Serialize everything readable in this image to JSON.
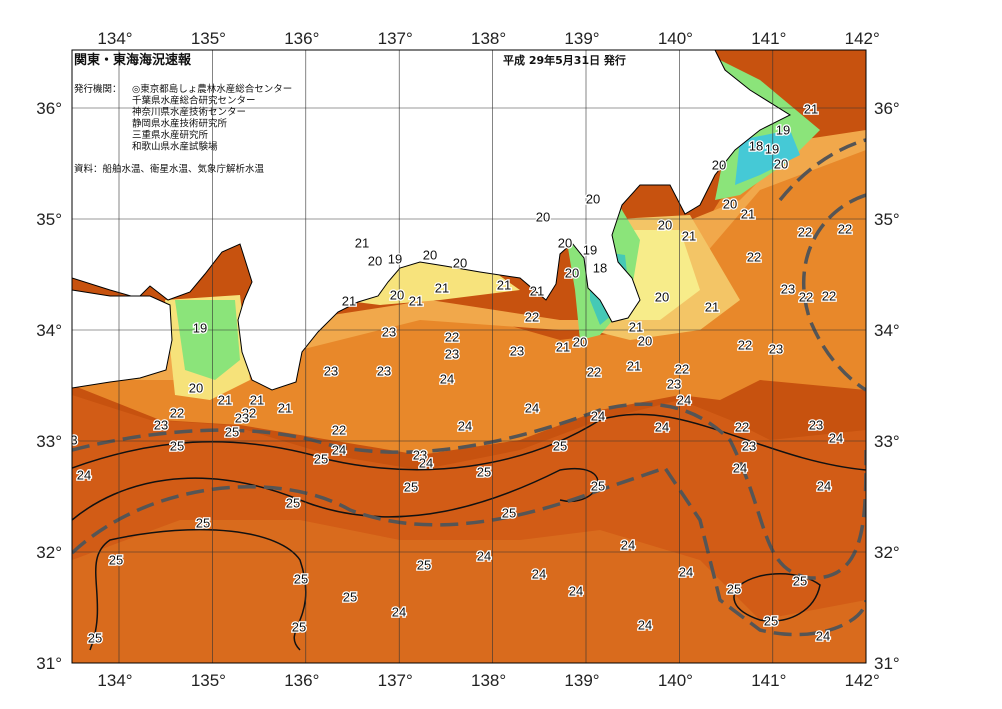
{
  "header": {
    "title": "関東・東海海況速報",
    "issued": "平成 29年5月31日 発行",
    "agencies_label": "発行機関：",
    "agencies": [
      "◎東京都島しょ農林水産総合センター",
      "千葉県水産総合研究センター",
      "神奈川県水産技術センター",
      "静岡県水産技術研究所",
      "三重県水産研究所",
      "和歌山県水産試験場"
    ],
    "source": "資料：船舶水温、衛星水温、気象庁解析水温"
  },
  "axes": {
    "longitudes": [
      "134°",
      "135°",
      "136°",
      "137°",
      "138°",
      "139°",
      "140°",
      "141°",
      "142°"
    ],
    "latitudes": [
      "36°",
      "35°",
      "34°",
      "33°",
      "32°",
      "31°"
    ]
  },
  "contour_labels": [
    21,
    19,
    18,
    19,
    20,
    20,
    20,
    21,
    22,
    22,
    21,
    22,
    23,
    22,
    22,
    21,
    22,
    23,
    20,
    20,
    20,
    19,
    18,
    20,
    20,
    20,
    21,
    20,
    21,
    20,
    21,
    22,
    22,
    23,
    24,
    22,
    21,
    21,
    21,
    21,
    20,
    21,
    20,
    19,
    21,
    20,
    20,
    19,
    20,
    21,
    21,
    21,
    22,
    23,
    22,
    23,
    25,
    25,
    23,
    22,
    23,
    23,
    23,
    23,
    24,
    24,
    24,
    24,
    22,
    24,
    25,
    23,
    24,
    25,
    25,
    25,
    24,
    22,
    23,
    23,
    24,
    24,
    24,
    25,
    25,
    25,
    25,
    24,
    24,
    24,
    24,
    24,
    25,
    25,
    25,
    25,
    25,
    25,
    25,
    24,
    25,
    24,
    24,
    25,
    24,
    3
  ]
}
